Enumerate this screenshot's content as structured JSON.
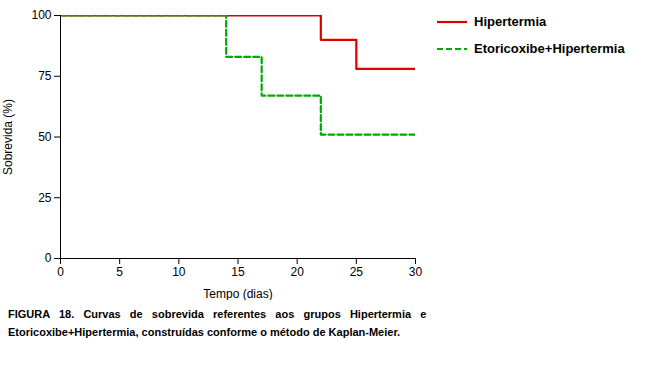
{
  "chart_data": {
    "type": "step",
    "xlabel": "Tempo (dias)",
    "ylabel": "Sobrevida (%)",
    "series": [
      {
        "name": "Hipertermia",
        "color": "#dd0000",
        "line_style": "solid",
        "x": [
          0,
          22,
          22,
          25,
          25,
          30
        ],
        "values": [
          100,
          100,
          90,
          90,
          78,
          78
        ]
      },
      {
        "name": "Etoricoxibe+Hipertermia",
        "color": "#00aa00",
        "line_style": "dashed",
        "x": [
          0,
          14,
          14,
          17,
          17,
          22,
          22,
          30
        ],
        "values": [
          100,
          100,
          83,
          83,
          67,
          67,
          51,
          51
        ]
      }
    ],
    "xlim": [
      0,
      30
    ],
    "ylim": [
      0,
      100
    ],
    "xticks": [
      0,
      5,
      10,
      15,
      20,
      25,
      30
    ],
    "yticks": [
      0,
      25,
      50,
      75,
      100
    ],
    "legend": "right",
    "caption": [
      "FIGURA   18.   Curvas   de   sobrevida   referentes   aos   grupos   Hipertermia   e",
      "Etoricoxibe+Hipertermia, construídas conforme o método de Kaplan-Meier."
    ]
  }
}
